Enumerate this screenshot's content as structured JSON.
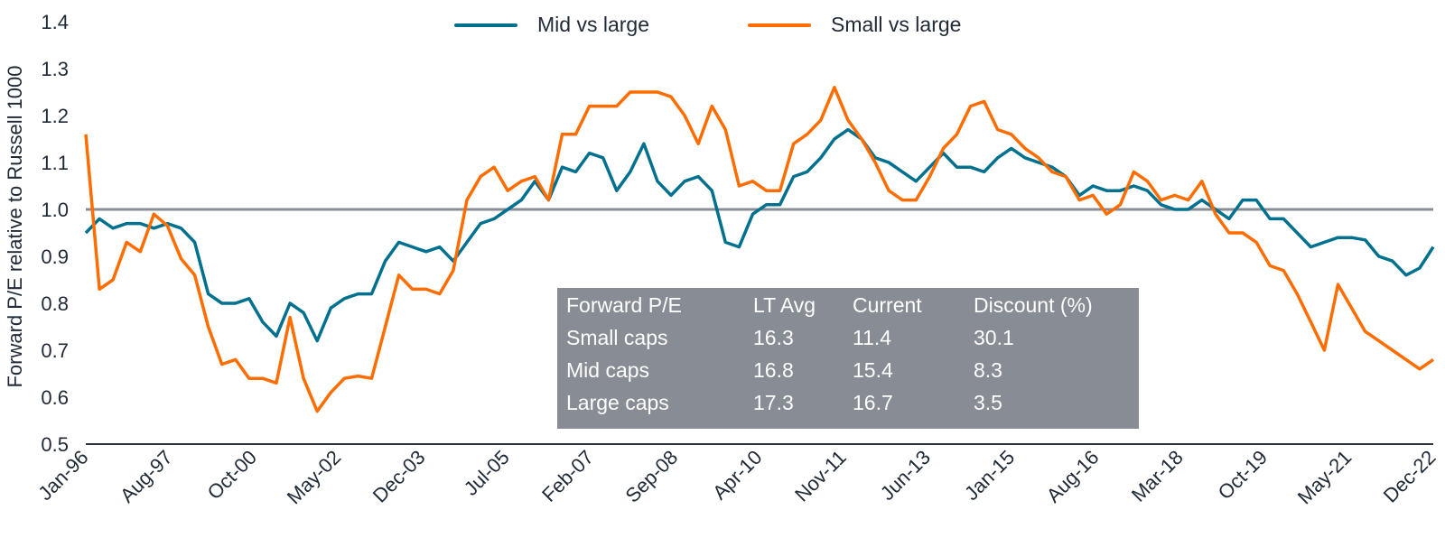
{
  "chart_data": {
    "type": "line",
    "ylabel": "Forward P/E relative to Russell 1000",
    "ylim": [
      0.5,
      1.4
    ],
    "yticks": [
      "0.5",
      "0.6",
      "0.7",
      "0.8",
      "0.9",
      "1.0",
      "1.1",
      "1.2",
      "1.3",
      "1.4"
    ],
    "xticks": [
      "Jan-96",
      "Aug-97",
      "Oct-00",
      "May-02",
      "Dec-03",
      "Jul-05",
      "Feb-07",
      "Sep-08",
      "Apr-10",
      "Nov-11",
      "Jun-13",
      "Jan-15",
      "Aug-16",
      "Mar-18",
      "Oct-19",
      "May-21",
      "Dec-22"
    ],
    "reference_line": 1.0,
    "legend_position": "top-center",
    "series": [
      {
        "name": "Mid vs large",
        "color": "#00708f",
        "values": [
          0.95,
          0.98,
          0.96,
          0.97,
          0.97,
          0.96,
          0.97,
          0.96,
          0.93,
          0.82,
          0.8,
          0.8,
          0.81,
          0.76,
          0.73,
          0.8,
          0.78,
          0.72,
          0.79,
          0.81,
          0.82,
          0.82,
          0.89,
          0.93,
          0.92,
          0.91,
          0.92,
          0.89,
          0.93,
          0.97,
          0.98,
          1.0,
          1.02,
          1.06,
          1.02,
          1.09,
          1.08,
          1.12,
          1.11,
          1.04,
          1.08,
          1.14,
          1.06,
          1.03,
          1.06,
          1.07,
          1.04,
          0.93,
          0.92,
          0.99,
          1.01,
          1.01,
          1.07,
          1.08,
          1.11,
          1.15,
          1.17,
          1.15,
          1.11,
          1.1,
          1.08,
          1.06,
          1.09,
          1.12,
          1.09,
          1.09,
          1.08,
          1.11,
          1.13,
          1.11,
          1.1,
          1.09,
          1.07,
          1.03,
          1.05,
          1.04,
          1.04,
          1.05,
          1.04,
          1.01,
          1.0,
          1.0,
          1.02,
          1.0,
          0.98,
          1.02,
          1.02,
          0.98,
          0.98,
          0.95,
          0.92,
          0.93,
          0.94,
          0.94,
          0.935,
          0.9,
          0.89,
          0.86,
          0.875,
          0.92
        ]
      },
      {
        "name": "Small vs large",
        "color": "#ff6d00",
        "values": [
          1.16,
          0.83,
          0.85,
          0.93,
          0.91,
          0.99,
          0.965,
          0.895,
          0.86,
          0.75,
          0.67,
          0.68,
          0.64,
          0.64,
          0.63,
          0.77,
          0.64,
          0.57,
          0.61,
          0.64,
          0.645,
          0.64,
          0.75,
          0.86,
          0.83,
          0.83,
          0.82,
          0.87,
          1.02,
          1.07,
          1.09,
          1.04,
          1.06,
          1.07,
          1.02,
          1.16,
          1.16,
          1.22,
          1.22,
          1.22,
          1.25,
          1.25,
          1.25,
          1.24,
          1.2,
          1.14,
          1.22,
          1.17,
          1.05,
          1.06,
          1.04,
          1.04,
          1.14,
          1.16,
          1.19,
          1.26,
          1.19,
          1.15,
          1.1,
          1.04,
          1.02,
          1.02,
          1.07,
          1.13,
          1.16,
          1.22,
          1.23,
          1.17,
          1.16,
          1.13,
          1.11,
          1.08,
          1.07,
          1.02,
          1.03,
          0.99,
          1.01,
          1.08,
          1.06,
          1.02,
          1.03,
          1.02,
          1.06,
          0.99,
          0.95,
          0.95,
          0.93,
          0.88,
          0.87,
          0.82,
          0.76,
          0.7,
          0.84,
          0.79,
          0.74,
          0.72,
          0.7,
          0.68,
          0.66,
          0.68
        ]
      }
    ]
  },
  "table": {
    "headers": [
      "Forward P/E",
      "LT Avg",
      "Current",
      "Discount (%)"
    ],
    "rows": [
      [
        "Small caps",
        "16.3",
        "11.4",
        "30.1"
      ],
      [
        "Mid caps",
        "16.8",
        "15.4",
        "8.3"
      ],
      [
        "Large caps",
        "17.3",
        "16.7",
        "3.5"
      ]
    ],
    "background": "#888c94"
  }
}
